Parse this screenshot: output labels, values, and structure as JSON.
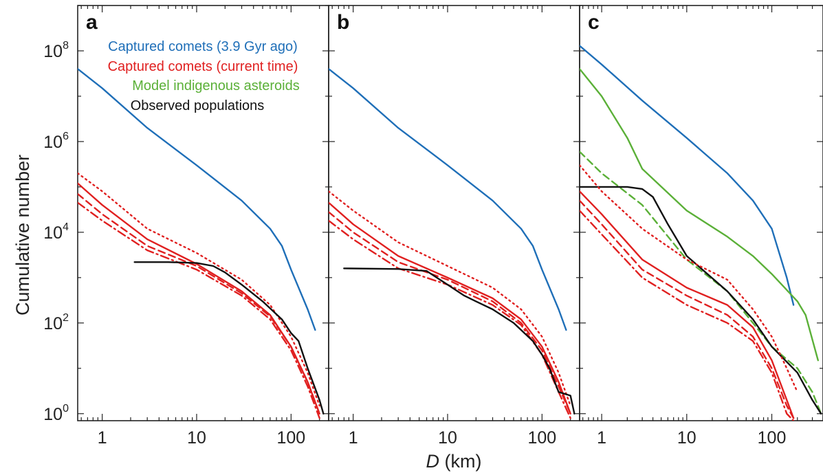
{
  "chart_data": {
    "type": "line",
    "y_axis_label": "Cumulative number",
    "x_axis_label_italic": "D",
    "x_axis_label_rest": " (km)",
    "x_scale": "log",
    "y_scale": "log",
    "xlim": [
      0.55,
      250
    ],
    "ylim": [
      0.7,
      1000000000
    ],
    "x_tick_values": [
      1,
      10,
      100
    ],
    "x_tick_labels": [
      "1",
      "10",
      "100"
    ],
    "y_tick_values": [
      1,
      100,
      10000,
      1000000,
      100000000
    ],
    "y_tick_base": "10",
    "y_tick_exponents": [
      "0",
      "2",
      "4",
      "6",
      "8"
    ],
    "legend": [
      {
        "label": "Captured comets (3.9 Gyr ago)",
        "color": "#1f6fb8"
      },
      {
        "label": "Captured comets (current time)",
        "color": "#e02020"
      },
      {
        "label": "Model indigenous asteroids",
        "color": "#5bb038"
      },
      {
        "label": "Observed populations",
        "color": "#111111"
      }
    ],
    "legend_placement": "top-left of panel a",
    "colors": {
      "blue": "#1f6fb8",
      "red": "#e02020",
      "green": "#5bb038",
      "black": "#111111"
    },
    "panels": [
      {
        "label": "a",
        "xlim": [
          0.55,
          250
        ],
        "series": [
          {
            "color": "blue",
            "style": "solid",
            "x": [
              0.55,
              1,
              3,
              10,
              30,
              60,
              80,
              100,
              150,
              180
            ],
            "y": [
              40000000,
              15000000,
              2000000,
              300000,
              50000,
              12000,
              5000,
              1500,
              200,
              70
            ]
          },
          {
            "color": "red",
            "style": "solid",
            "x": [
              0.55,
              1,
              3,
              10,
              30,
              60,
              100,
              150,
              200
            ],
            "y": [
              120000,
              40000,
              7000,
              2000,
              500,
              150,
              30,
              5,
              1
            ]
          },
          {
            "color": "red",
            "style": "dotted",
            "x": [
              0.55,
              1,
              3,
              10,
              30,
              60,
              100,
              150,
              200
            ],
            "y": [
              200000,
              80000,
              12000,
              3500,
              900,
              250,
              50,
              8,
              1.5
            ]
          },
          {
            "color": "red",
            "style": "dashed",
            "x": [
              0.55,
              1,
              3,
              10,
              30,
              60,
              100,
              150,
              200
            ],
            "y": [
              70000,
              25000,
              5000,
              1800,
              450,
              140,
              30,
              5,
              1
            ]
          },
          {
            "color": "red",
            "style": "dashdot",
            "x": [
              0.55,
              1,
              3,
              10,
              30,
              60,
              100,
              150,
              200
            ],
            "y": [
              45000,
              18000,
              4000,
              1500,
              400,
              120,
              25,
              4,
              0.8
            ]
          },
          {
            "color": "black",
            "style": "solid",
            "x": [
              2.2,
              5,
              10,
              15,
              20,
              30,
              50,
              80,
              100,
              120,
              150,
              200,
              220
            ],
            "y": [
              2200,
              2200,
              2100,
              1800,
              1300,
              700,
              300,
              120,
              60,
              40,
              10,
              2,
              1
            ]
          }
        ]
      },
      {
        "label": "b",
        "xlim": [
          0.55,
          250
        ],
        "series": [
          {
            "color": "blue",
            "style": "solid",
            "x": [
              0.55,
              1,
              3,
              10,
              30,
              60,
              80,
              100,
              150,
              180
            ],
            "y": [
              40000000,
              15000000,
              2000000,
              300000,
              50000,
              12000,
              5000,
              1500,
              200,
              70
            ]
          },
          {
            "color": "red",
            "style": "solid",
            "x": [
              0.55,
              1,
              3,
              10,
              30,
              60,
              100,
              150,
              200
            ],
            "y": [
              45000,
              15000,
              3000,
              1000,
              350,
              120,
              30,
              5,
              1
            ]
          },
          {
            "color": "red",
            "style": "dotted",
            "x": [
              0.55,
              1,
              3,
              10,
              30,
              60,
              100,
              150,
              200
            ],
            "y": [
              80000,
              30000,
              6000,
              1800,
              600,
              200,
              50,
              8,
              1.5
            ]
          },
          {
            "color": "red",
            "style": "dashed",
            "x": [
              0.55,
              1,
              3,
              10,
              30,
              60,
              100,
              150,
              200
            ],
            "y": [
              28000,
              10000,
              2200,
              900,
              300,
              100,
              25,
              4,
              1
            ]
          },
          {
            "color": "red",
            "style": "dashdot",
            "x": [
              0.55,
              1,
              3,
              10,
              30,
              60,
              100,
              150,
              200
            ],
            "y": [
              18000,
              7000,
              1600,
              700,
              250,
              90,
              20,
              3,
              0.8
            ]
          },
          {
            "color": "black",
            "style": "solid",
            "x": [
              0.8,
              3,
              6,
              10,
              15,
              20,
              30,
              50,
              80,
              100,
              120,
              150,
              200,
              220
            ],
            "y": [
              1600,
              1550,
              1400,
              700,
              400,
              300,
              200,
              100,
              40,
              20,
              10,
              3,
              2.5,
              1
            ]
          }
        ]
      },
      {
        "label": "c",
        "xlim": [
          0.55,
          400
        ],
        "series": [
          {
            "color": "blue",
            "style": "solid",
            "x": [
              0.55,
              1,
              3,
              10,
              30,
              60,
              100,
              150,
              180
            ],
            "y": [
              130000000,
              50000000,
              8000000,
              1200000,
              200000,
              50000,
              12000,
              1000,
              250
            ]
          },
          {
            "color": "green",
            "style": "solid",
            "x": [
              0.55,
              1,
              2,
              3,
              10,
              30,
              60,
              100,
              200,
              250,
              350
            ],
            "y": [
              40000000,
              10000000,
              1200000,
              250000,
              30000,
              8000,
              3000,
              1200,
              300,
              150,
              15
            ]
          },
          {
            "color": "green",
            "style": "dashed",
            "x": [
              0.55,
              1,
              3,
              10,
              30,
              60,
              100,
              200,
              300,
              380
            ],
            "y": [
              600000,
              200000,
              40000,
              2500,
              500,
              100,
              30,
              10,
              3,
              1
            ]
          },
          {
            "color": "black",
            "style": "solid",
            "x": [
              0.55,
              2,
              3,
              4,
              6,
              10,
              30,
              60,
              100,
              200,
              300,
              380
            ],
            "y": [
              100000,
              100000,
              90000,
              60000,
              15000,
              3000,
              500,
              120,
              30,
              8,
              2,
              1
            ]
          },
          {
            "color": "red",
            "style": "solid",
            "x": [
              0.55,
              1,
              3,
              10,
              30,
              60,
              100,
              150,
              180
            ],
            "y": [
              80000,
              25000,
              2500,
              600,
              250,
              80,
              15,
              2,
              0.8
            ]
          },
          {
            "color": "red",
            "style": "dotted",
            "x": [
              0.55,
              1,
              3,
              10,
              30,
              60,
              100,
              150,
              200
            ],
            "y": [
              300000,
              80000,
              12000,
              2500,
              900,
              200,
              50,
              10,
              3
            ]
          },
          {
            "color": "red",
            "style": "dashed",
            "x": [
              0.55,
              1,
              3,
              10,
              30,
              60,
              100,
              150,
              180
            ],
            "y": [
              50000,
              15000,
              1500,
              400,
              150,
              50,
              10,
              1.5,
              0.8
            ]
          },
          {
            "color": "red",
            "style": "dashdot",
            "x": [
              0.55,
              1,
              3,
              10,
              30,
              60,
              100,
              150,
              180
            ],
            "y": [
              30000,
              9000,
              1000,
              250,
              100,
              40,
              8,
              1,
              0.7
            ]
          }
        ]
      }
    ]
  }
}
